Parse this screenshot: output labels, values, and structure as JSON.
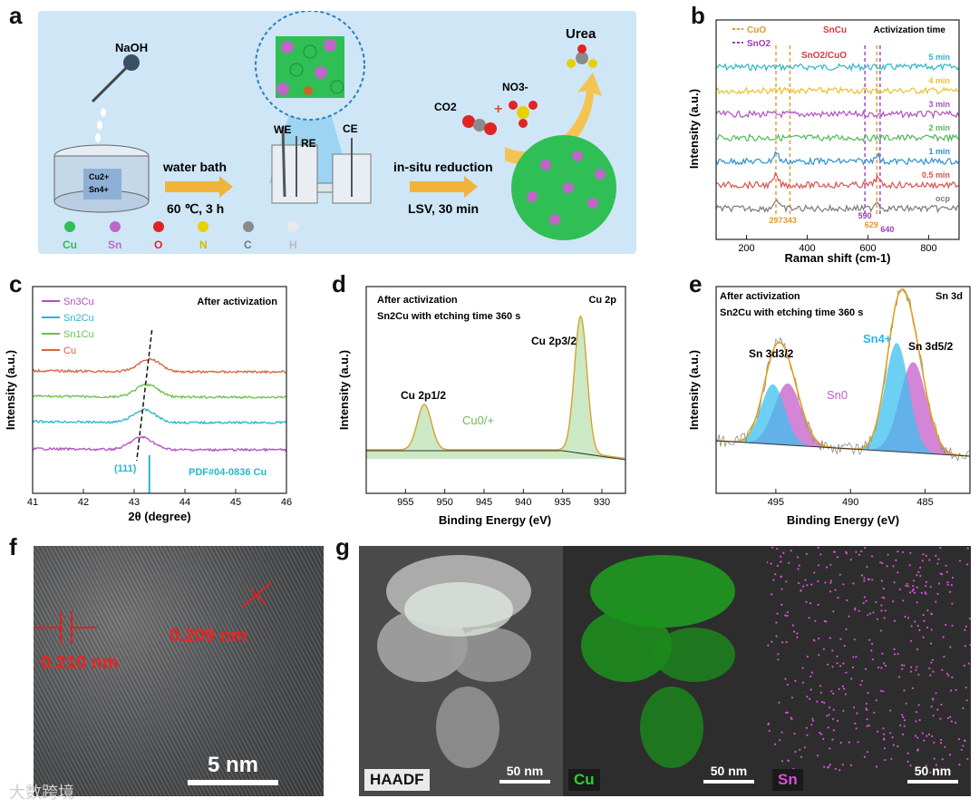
{
  "panel_labels": [
    "a",
    "b",
    "c",
    "d",
    "e",
    "f",
    "g"
  ],
  "panel_a": {
    "naoh": "NaOH",
    "beaker_ions": [
      "Cu2+",
      "Sn4+"
    ],
    "step1_label": "water bath",
    "step1_cond": "60 ℃, 3 h",
    "electrodes": [
      "WE",
      "RE",
      "CE"
    ],
    "step2_label": "in-situ reduction",
    "step2_cond": "LSV, 30 min",
    "co2": "CO2",
    "no3": "NO3-",
    "plus": "+",
    "urea": "Urea",
    "legend": [
      {
        "label": "Cu",
        "color": "#2fbf55"
      },
      {
        "label": "Sn",
        "color": "#c066c8"
      },
      {
        "label": "O",
        "color": "#e02424"
      },
      {
        "label": "N",
        "color": "#e8d000"
      },
      {
        "label": "C",
        "color": "#8a8a8a"
      },
      {
        "label": "H",
        "color": "#e9e9e9"
      }
    ]
  },
  "chart_data": [
    {
      "panel": "b",
      "type": "line",
      "xlabel": "Raman shift (cm-1)",
      "ylabel": "Intensity (a.u.)",
      "xlim": [
        100,
        900
      ],
      "xticks": [
        200,
        400,
        600,
        800
      ],
      "legend": [
        {
          "name": "CuO",
          "color": "#e8962a"
        },
        {
          "name": "SnO2",
          "color": "#9b3fbf"
        }
      ],
      "annotations": [
        "SnCu",
        "SnO2/CuO"
      ],
      "legend_title": "Activization time",
      "reference_lines": [
        {
          "x": 297,
          "label": "297",
          "color": "#e8962a"
        },
        {
          "x": 343,
          "label": "343",
          "color": "#e8962a"
        },
        {
          "x": 590,
          "label": "590",
          "color": "#9b3fbf"
        },
        {
          "x": 629,
          "label": "629",
          "color": "#e8962a"
        },
        {
          "x": 640,
          "label": "640",
          "color": "#9b3fbf"
        }
      ],
      "series": [
        {
          "name": "5 min",
          "color": "#2ab7c9"
        },
        {
          "name": "4 min",
          "color": "#e8c22a"
        },
        {
          "name": "3 min",
          "color": "#b04fc2"
        },
        {
          "name": "2 min",
          "color": "#4fb85a"
        },
        {
          "name": "1 min",
          "color": "#2f8fd0"
        },
        {
          "name": "0.5 min",
          "color": "#d9534f"
        },
        {
          "name": "ocp",
          "color": "#7a7a7a"
        }
      ]
    },
    {
      "panel": "c",
      "type": "line",
      "xlabel": "2θ (degree)",
      "ylabel": "Intensity (a.u.)",
      "xlim": [
        41,
        46
      ],
      "xticks": [
        41,
        42,
        43,
        44,
        45,
        46
      ],
      "title": "After activization",
      "reference": {
        "x": 43.3,
        "label": "PDF#04-0836 Cu",
        "peak_label": "(111)"
      },
      "series": [
        {
          "name": "Sn3Cu",
          "color": "#b04fc2",
          "peak": 43.15
        },
        {
          "name": "Sn2Cu",
          "color": "#2ab7c9",
          "peak": 43.2
        },
        {
          "name": "Sn1Cu",
          "color": "#6cc04a",
          "peak": 43.25
        },
        {
          "name": "Cu",
          "color": "#d9623a",
          "peak": 43.3
        }
      ]
    },
    {
      "panel": "d",
      "type": "line",
      "xlabel": "Binding Energy (eV)",
      "ylabel": "Intensity (a.u.)",
      "xlim": [
        960,
        927
      ],
      "xticks": [
        955,
        950,
        945,
        940,
        935,
        930
      ],
      "title": "After activization",
      "subtitle": "Sn2Cu with etching time 360 s",
      "corner": "Cu 2p",
      "peaks": [
        {
          "x": 952.6,
          "label": "Cu 2p1/2"
        },
        {
          "x": 932.7,
          "label": "Cu 2p3/2"
        }
      ],
      "annotation": "Cu0/+"
    },
    {
      "panel": "e",
      "type": "line",
      "xlabel": "Binding Energy (eV)",
      "ylabel": "Intensity (a.u.)",
      "xlim": [
        499,
        482
      ],
      "xticks": [
        495,
        490,
        485
      ],
      "title": "After activization",
      "subtitle": "Sn2Cu with etching time 360 s",
      "corner": "Sn 3d",
      "peaks": [
        {
          "x": 494.7,
          "label": "Sn 3d3/2"
        },
        {
          "x": 486.4,
          "label": "Sn 3d5/2"
        }
      ],
      "components": [
        {
          "name": "Sn4+",
          "color": "#2ab7e8"
        },
        {
          "name": "Sn0",
          "color": "#c45cc8"
        }
      ]
    }
  ],
  "panel_f": {
    "d1": "0.210 nm",
    "d2": "0.209 nm",
    "scale": "5 nm"
  },
  "panel_g": {
    "maps": [
      {
        "label": "HAADF",
        "scale": "50 nm"
      },
      {
        "label": "Cu",
        "scale": "50 nm"
      },
      {
        "label": "Sn",
        "scale": "50 nm"
      }
    ]
  },
  "watermark": "大数跨境"
}
